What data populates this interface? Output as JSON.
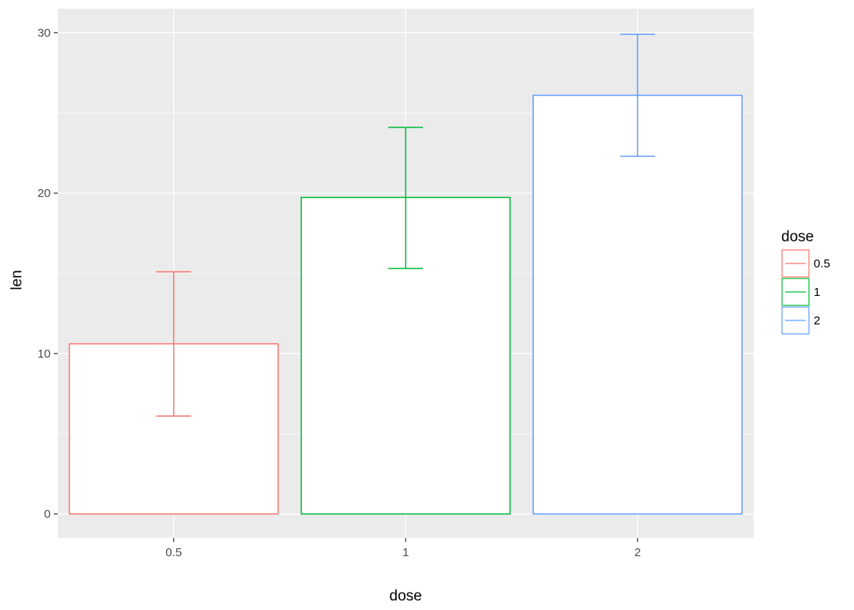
{
  "chart_data": {
    "type": "bar",
    "title": "",
    "xlabel": "dose",
    "ylabel": "len",
    "categories": [
      "0.5",
      "1",
      "2"
    ],
    "values": [
      10.605,
      19.735,
      26.1
    ],
    "error_bars": [
      {
        "low": 6.1,
        "high": 15.1
      },
      {
        "low": 15.3,
        "high": 24.1
      },
      {
        "low": 22.3,
        "high": 29.9
      }
    ],
    "colors": [
      "#F8766D",
      "#00BA38",
      "#619CFF"
    ],
    "ylim": [
      -1.5,
      31.5
    ],
    "yticks": [
      0,
      10,
      20,
      30
    ],
    "ytick_labels": [
      "0",
      "10",
      "20",
      "30"
    ],
    "grid": true,
    "legend": {
      "title": "dose",
      "position": "right",
      "entries": [
        "0.5",
        "1",
        "2"
      ]
    }
  }
}
